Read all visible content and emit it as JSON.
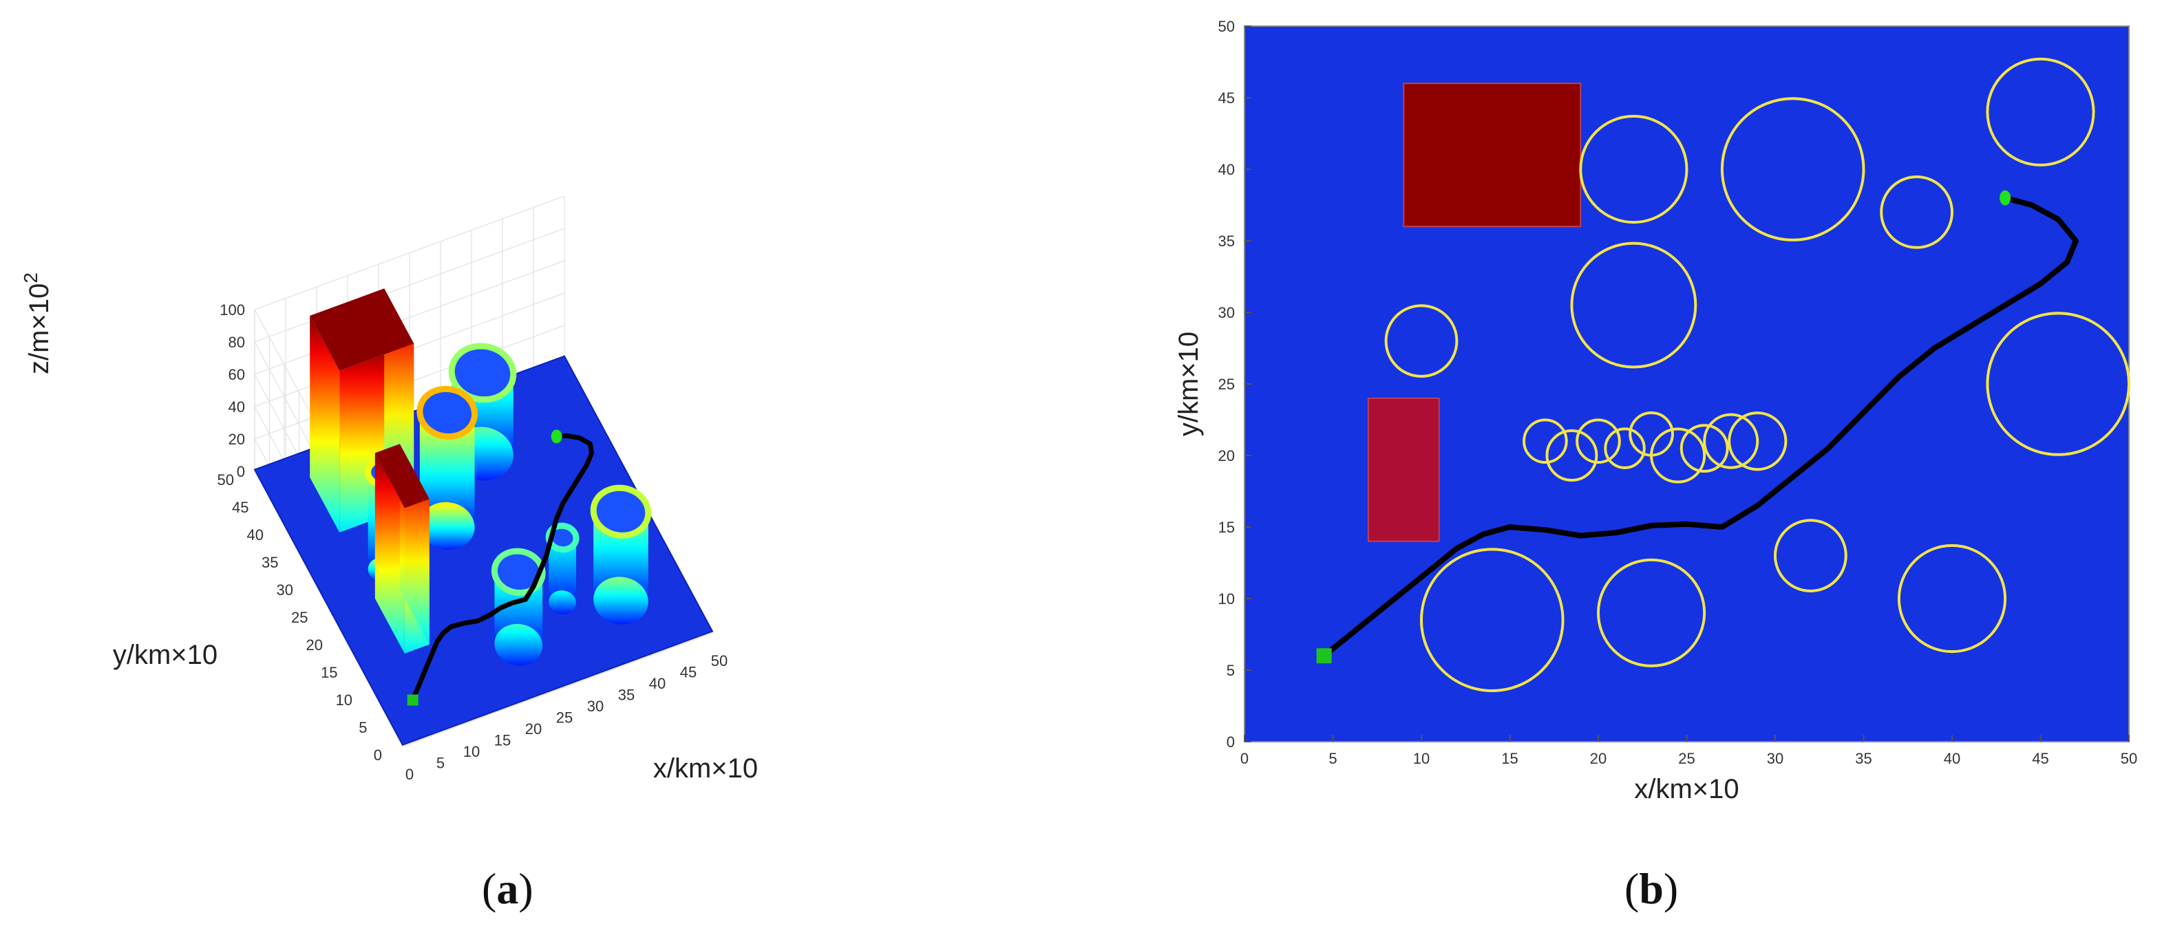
{
  "panels": [
    {
      "label_open": "(",
      "label_letter": "a",
      "label_close": ")"
    },
    {
      "label_open": "(",
      "label_letter": "b",
      "label_close": ")"
    }
  ],
  "colors": {
    "terrain": "#1533e0",
    "path": "#000000",
    "circle_outline": "#f2e44a",
    "block_large": "#8e0000",
    "block_small": "#ad0e33",
    "start": "#1ec41e",
    "goal": "#20e020"
  },
  "chart_data": [
    {
      "type": "surface3d",
      "panel": "a",
      "xlabel": "x/km×10",
      "ylabel": "y/km×10",
      "zlabel_main": "z/m×10",
      "zlabel_exp": "2",
      "xlim": [
        0,
        50
      ],
      "ylim": [
        0,
        50
      ],
      "zlim": [
        0,
        100
      ],
      "xticks": [
        "0",
        "5",
        "10",
        "15",
        "20",
        "25",
        "30",
        "35",
        "40",
        "45",
        "50"
      ],
      "yticks": [
        "0",
        "5",
        "10",
        "15",
        "20",
        "25",
        "30",
        "35",
        "40",
        "45",
        "50"
      ],
      "zticks": [
        "0",
        "20",
        "40",
        "60",
        "80",
        "100"
      ],
      "grid": true,
      "boxes": [
        {
          "x": [
            7,
            19
          ],
          "y": [
            36,
            46
          ],
          "z": [
            0,
            100
          ]
        },
        {
          "x": [
            7,
            11
          ],
          "y": [
            14,
            24
          ],
          "z": [
            0,
            90
          ]
        }
      ],
      "cylinders": [
        {
          "x": 22,
          "y": 31,
          "r": 4,
          "z": 70
        },
        {
          "x": 32,
          "y": 40,
          "r": 4.5,
          "z": 50
        },
        {
          "x": 40,
          "y": 10,
          "r": 4,
          "z": 55
        },
        {
          "x": 10,
          "y": 28,
          "r": 2,
          "z": 60
        },
        {
          "x": 23,
          "y": 9,
          "r": 3.5,
          "z": 45
        },
        {
          "x": 32,
          "y": 13,
          "r": 2,
          "z": 40
        }
      ],
      "path": {
        "x": [
          4.5,
          6,
          8,
          10,
          12,
          13.5,
          15,
          17,
          19,
          21,
          23,
          25,
          27,
          29,
          31,
          33,
          35,
          37,
          39,
          41,
          43,
          45,
          46.5,
          47,
          46,
          44.5,
          43
        ],
        "y": [
          6,
          7.5,
          9.5,
          11.5,
          13.5,
          14.5,
          15,
          14.8,
          14.4,
          14.6,
          15.1,
          15.2,
          15,
          16.5,
          18.5,
          20.5,
          23,
          25.5,
          27.5,
          29,
          30.5,
          32,
          33.5,
          35,
          36.5,
          37.5,
          38
        ]
      },
      "start": {
        "x": 4.5,
        "y": 6
      },
      "goal": {
        "x": 43,
        "y": 38
      }
    },
    {
      "type": "scatter",
      "panel": "b",
      "xlabel": "x/km×10",
      "ylabel": "y/km×10",
      "xlim": [
        0,
        50
      ],
      "ylim": [
        0,
        50
      ],
      "xticks": [
        "0",
        "5",
        "10",
        "15",
        "20",
        "25",
        "30",
        "35",
        "40",
        "45",
        "50"
      ],
      "yticks": [
        "0",
        "5",
        "10",
        "15",
        "20",
        "25",
        "30",
        "35",
        "40",
        "45",
        "50"
      ],
      "grid": false,
      "rectangles": [
        {
          "x": [
            9,
            19
          ],
          "y": [
            36,
            46
          ],
          "color": "#8e0000"
        },
        {
          "x": [
            7,
            11
          ],
          "y": [
            14,
            24
          ],
          "color": "#ad0e33"
        }
      ],
      "circles": [
        {
          "x": 22,
          "y": 40,
          "r": 3
        },
        {
          "x": 31,
          "y": 40,
          "r": 4
        },
        {
          "x": 38,
          "y": 37,
          "r": 2
        },
        {
          "x": 45,
          "y": 44,
          "r": 3
        },
        {
          "x": 22,
          "y": 30.5,
          "r": 3.5
        },
        {
          "x": 10,
          "y": 28,
          "r": 2
        },
        {
          "x": 46,
          "y": 25,
          "r": 4
        },
        {
          "x": 17,
          "y": 21,
          "r": 1.2
        },
        {
          "x": 18.5,
          "y": 20,
          "r": 1.4
        },
        {
          "x": 20,
          "y": 21,
          "r": 1.2
        },
        {
          "x": 21.5,
          "y": 20.5,
          "r": 1.1
        },
        {
          "x": 23,
          "y": 21.5,
          "r": 1.2
        },
        {
          "x": 24.5,
          "y": 20,
          "r": 1.5
        },
        {
          "x": 26,
          "y": 20.5,
          "r": 1.3
        },
        {
          "x": 27.5,
          "y": 21,
          "r": 1.5
        },
        {
          "x": 29,
          "y": 21,
          "r": 1.6
        },
        {
          "x": 14,
          "y": 8.5,
          "r": 4
        },
        {
          "x": 23,
          "y": 9,
          "r": 3
        },
        {
          "x": 32,
          "y": 13,
          "r": 2
        },
        {
          "x": 40,
          "y": 10,
          "r": 3
        }
      ],
      "path": {
        "x": [
          4.5,
          6,
          8,
          10,
          12,
          13.5,
          15,
          17,
          19,
          21,
          23,
          25,
          27,
          29,
          31,
          33,
          35,
          37,
          39,
          41,
          43,
          45,
          46.5,
          47,
          46,
          44.5,
          43
        ],
        "y": [
          6,
          7.5,
          9.5,
          11.5,
          13.5,
          14.5,
          15,
          14.8,
          14.4,
          14.6,
          15.1,
          15.2,
          15,
          16.5,
          18.5,
          20.5,
          23,
          25.5,
          27.5,
          29,
          30.5,
          32,
          33.5,
          35,
          36.5,
          37.5,
          38
        ]
      },
      "start": {
        "x": 4.5,
        "y": 6
      },
      "goal": {
        "x": 43,
        "y": 38
      }
    }
  ]
}
